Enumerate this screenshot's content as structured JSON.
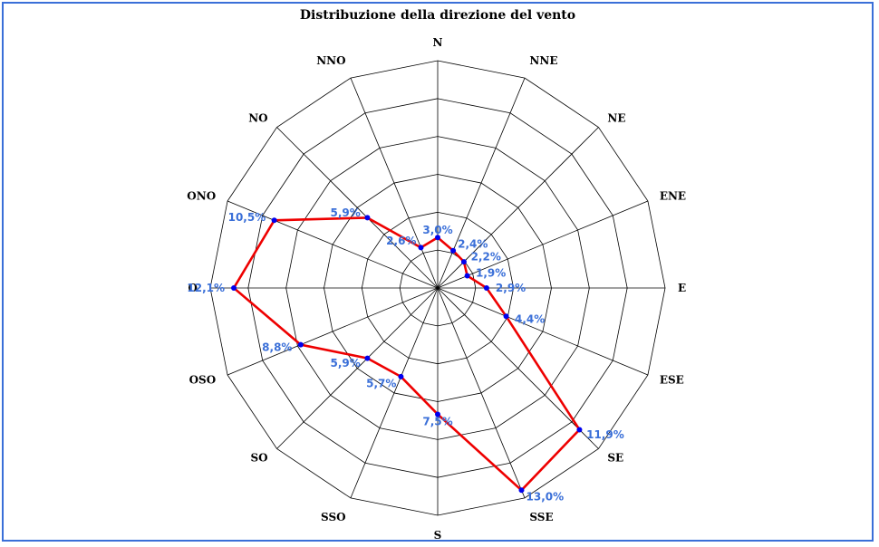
{
  "chart_data": {
    "type": "radar",
    "title": "Distribuzione della direzione del vento",
    "categories": [
      "N",
      "NNE",
      "NE",
      "ENE",
      "E",
      "ESE",
      "SE",
      "SSE",
      "S",
      "SSO",
      "SO",
      "OSO",
      "O",
      "ONO",
      "NO",
      "NNO"
    ],
    "values": [
      3.0,
      2.4,
      2.2,
      1.9,
      2.9,
      4.4,
      11.9,
      13.0,
      7.5,
      5.7,
      5.9,
      8.8,
      12.1,
      10.5,
      5.9,
      2.6
    ],
    "value_labels": [
      "3,0%",
      "2,4%",
      "2,2%",
      "1,9%",
      "2,9%",
      "4,4%",
      "11,9%",
      "13,0%",
      "7,5%",
      "5,7%",
      "5,9%",
      "8,8%",
      "12,1%",
      "10,5%",
      "5,9%",
      "2,6%"
    ],
    "rmax": 13.5,
    "rings": 6,
    "grid": true,
    "colors": {
      "series": "#ee0000",
      "points": "#0000ee",
      "labels": "#3a6fd8",
      "grid": "#000000",
      "border": "#3a6fd8"
    }
  }
}
